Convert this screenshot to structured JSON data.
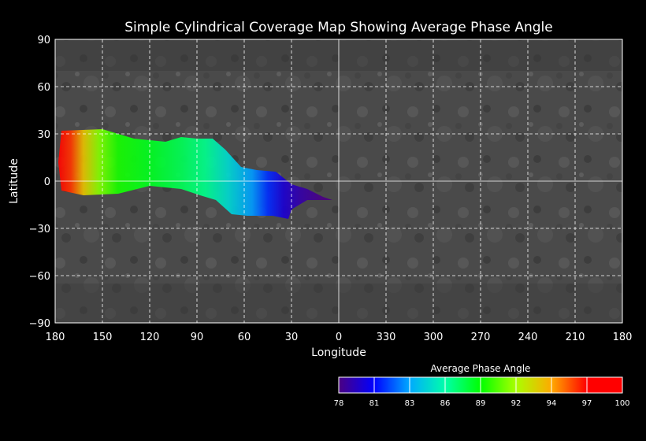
{
  "title": "Simple Cylindrical Coverage Map Showing Average Phase Angle",
  "xlabel": "Longitude",
  "ylabel": "Latitude",
  "x_ticks": [
    "180",
    "150",
    "120",
    "90",
    "60",
    "30",
    "0",
    "330",
    "300",
    "270",
    "240",
    "210",
    "180"
  ],
  "y_ticks": [
    "90",
    "60",
    "30",
    "0",
    "−30",
    "−60",
    "−90"
  ],
  "colorbar": {
    "title": "Average Phase Angle",
    "ticks": [
      "78",
      "81",
      "83",
      "86",
      "89",
      "92",
      "94",
      "97",
      "100"
    ],
    "colors": [
      "#4b0082",
      "#0000ff",
      "#00aaff",
      "#00ffaa",
      "#00ff00",
      "#aaff00",
      "#ffaa00",
      "#ff0000"
    ]
  },
  "chart_data": {
    "type": "heatmap",
    "title": "Simple Cylindrical Coverage Map Showing Average Phase Angle",
    "xlabel": "Longitude",
    "ylabel": "Latitude",
    "x_range": [
      180,
      -180
    ],
    "y_range": [
      -90,
      90
    ],
    "x_tick_values": [
      180,
      150,
      120,
      90,
      60,
      30,
      0,
      -30,
      -60,
      -90,
      -120,
      -150,
      -180
    ],
    "y_tick_values": [
      90,
      60,
      30,
      0,
      -30,
      -60,
      -90
    ],
    "grid": true,
    "colorbar_range": [
      78,
      100
    ],
    "coverage_outline": [
      [
        176,
        32
      ],
      [
        150,
        33
      ],
      [
        130,
        27
      ],
      [
        110,
        25
      ],
      [
        100,
        28
      ],
      [
        90,
        27
      ],
      [
        80,
        27
      ],
      [
        72,
        20
      ],
      [
        62,
        9
      ],
      [
        52,
        7
      ],
      [
        40,
        6
      ],
      [
        30,
        -2
      ],
      [
        20,
        -5
      ],
      [
        10,
        -10
      ],
      [
        4,
        -12
      ],
      [
        20,
        -12
      ],
      [
        30,
        -18
      ],
      [
        32,
        -24
      ],
      [
        42,
        -22
      ],
      [
        58,
        -22
      ],
      [
        68,
        -21
      ],
      [
        78,
        -12
      ],
      [
        88,
        -9
      ],
      [
        100,
        -5
      ],
      [
        120,
        -3
      ],
      [
        140,
        -8
      ],
      [
        162,
        -9
      ],
      [
        176,
        -6
      ],
      [
        178,
        12
      ]
    ],
    "phase_angle_by_longitude": [
      {
        "lon": 178,
        "value": 100
      },
      {
        "lon": 170,
        "value": 99
      },
      {
        "lon": 162,
        "value": 96
      },
      {
        "lon": 152,
        "value": 93
      },
      {
        "lon": 140,
        "value": 91
      },
      {
        "lon": 120,
        "value": 90
      },
      {
        "lon": 100,
        "value": 89
      },
      {
        "lon": 85,
        "value": 88
      },
      {
        "lon": 70,
        "value": 86
      },
      {
        "lon": 55,
        "value": 84
      },
      {
        "lon": 45,
        "value": 82
      },
      {
        "lon": 35,
        "value": 80
      },
      {
        "lon": 25,
        "value": 79
      },
      {
        "lon": 10,
        "value": 78
      }
    ]
  }
}
